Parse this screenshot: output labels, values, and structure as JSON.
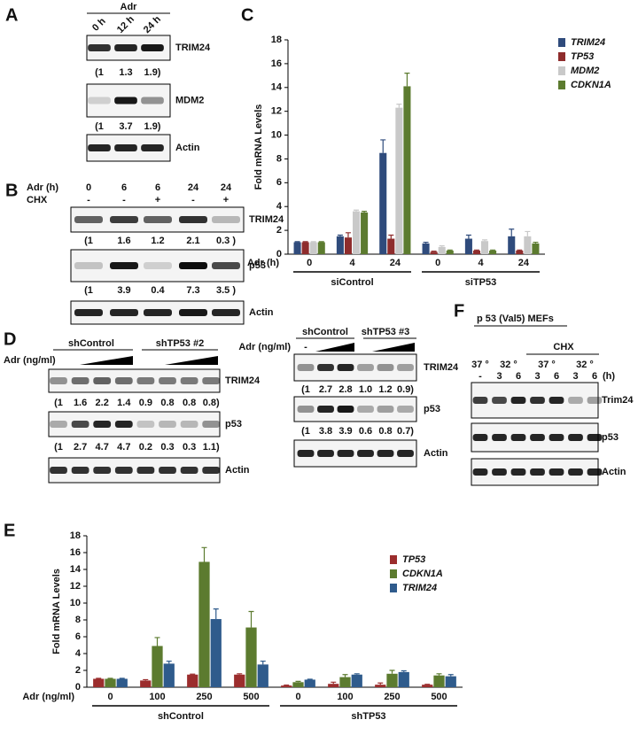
{
  "panels": {
    "A": {
      "letter": "A",
      "treatment": "Adr",
      "lanes": [
        "0 h",
        "12 h",
        "24 h"
      ],
      "blots": [
        {
          "label": "TRIM24",
          "quant": [
            "(1",
            "1.3",
            "1.9)"
          ]
        },
        {
          "label": "MDM2",
          "quant": [
            "(1",
            "3.7",
            "1.9)"
          ]
        },
        {
          "label": "Actin"
        }
      ]
    },
    "B": {
      "letter": "B",
      "row_labels": [
        "Adr (h)",
        "CHX"
      ],
      "lanes": [
        [
          "0",
          "6",
          "6",
          "24",
          "24"
        ],
        [
          "-",
          "-",
          "+",
          "-",
          "+"
        ]
      ],
      "blots": [
        {
          "label": "TRIM24",
          "quant": [
            "(1",
            "1.6",
            "1.2",
            "2.1",
            "0.3 )"
          ]
        },
        {
          "label": "p53",
          "quant": [
            "(1",
            "3.9",
            "0.4",
            "7.3",
            "3.5 )"
          ]
        },
        {
          "label": "Actin"
        }
      ]
    },
    "D": {
      "letter": "D",
      "left": {
        "groups": [
          "shControl",
          "shTP53 #2"
        ],
        "row_label": "Adr (ng/ml)",
        "blots": [
          {
            "label": "TRIM24",
            "quant": [
              "(1",
              "1.6",
              "2.2",
              "1.4",
              "0.9",
              "0.8",
              "0.8",
              "0.8)"
            ]
          },
          {
            "label": "p53",
            "quant": [
              "(1",
              "2.7",
              "4.7",
              "4.7",
              "0.2",
              "0.3",
              "0.3",
              "1.1)"
            ]
          },
          {
            "label": "Actin"
          }
        ]
      },
      "right": {
        "groups": [
          "shControl",
          "shTP53 #3"
        ],
        "row_label": "Adr (ng/ml)",
        "untreated": "-",
        "blots": [
          {
            "label": "TRIM24",
            "quant": [
              "(1",
              "2.7",
              "2.8",
              "1.0",
              "1.2",
              "0.9)"
            ]
          },
          {
            "label": "p53",
            "quant": [
              "(1",
              "3.8",
              "3.9",
              "0.6",
              "0.8",
              "0.7)"
            ]
          },
          {
            "label": "Actin"
          }
        ]
      }
    },
    "F": {
      "letter": "F",
      "title": "p 53 (Val5) MEFs",
      "treatment": "CHX",
      "temps": [
        "37 °",
        "32 °",
        "37 °",
        "32 °"
      ],
      "lanes": [
        "-",
        "3",
        "6",
        "3",
        "6",
        "3",
        "6"
      ],
      "unit": "(h)",
      "blots": [
        {
          "label": "Trim24"
        },
        {
          "label": "p53"
        },
        {
          "label": "Actin"
        }
      ]
    }
  },
  "chart_data": [
    {
      "type": "bar",
      "panel": "C",
      "y_label": "Fold mRNA Levels",
      "x_label": "Adr (h)",
      "categories": [
        "0",
        "4",
        "24",
        "0",
        "4",
        "24"
      ],
      "groups": [
        "siControl",
        "siTP53"
      ],
      "ylim": [
        0,
        18
      ],
      "yticks": [
        0,
        2,
        4,
        6,
        8,
        10,
        12,
        14,
        16,
        18
      ],
      "series": [
        {
          "name": "TRIM24",
          "color": "#2f4b7c",
          "values": [
            1.0,
            1.5,
            8.5,
            0.9,
            1.3,
            1.5
          ],
          "errors": [
            0.05,
            0.1,
            1.1,
            0.1,
            0.3,
            0.6
          ]
        },
        {
          "name": "TP53",
          "color": "#8e2c2c",
          "values": [
            1.0,
            1.4,
            1.3,
            0.2,
            0.3,
            0.3
          ],
          "errors": [
            0.05,
            0.4,
            0.3,
            0.05,
            0.05,
            0.05
          ]
        },
        {
          "name": "MDM2",
          "color": "#c9c9c9",
          "values": [
            1.0,
            3.6,
            12.3,
            0.6,
            1.1,
            1.5
          ],
          "errors": [
            0.05,
            0.1,
            0.3,
            0.1,
            0.1,
            0.4
          ]
        },
        {
          "name": "CDKN1A",
          "color": "#5c7b2f",
          "values": [
            1.0,
            3.5,
            14.1,
            0.3,
            0.3,
            0.9
          ],
          "errors": [
            0.05,
            0.1,
            1.1,
            0.05,
            0.05,
            0.1
          ]
        }
      ]
    },
    {
      "type": "bar",
      "panel": "E",
      "y_label": "Fold mRNA Levels",
      "x_label": "Adr (ng/ml)",
      "categories": [
        "0",
        "100",
        "250",
        "500",
        "0",
        "100",
        "250",
        "500"
      ],
      "groups": [
        "shControl",
        "shTP53"
      ],
      "ylim": [
        0,
        18
      ],
      "yticks": [
        0,
        2,
        4,
        6,
        8,
        10,
        12,
        14,
        16,
        18
      ],
      "series": [
        {
          "name": "TP53",
          "color": "#9b2d2d",
          "values": [
            1.0,
            0.8,
            1.5,
            1.5,
            0.2,
            0.4,
            0.3,
            0.3
          ],
          "errors": [
            0.05,
            0.1,
            0.05,
            0.1,
            0.05,
            0.2,
            0.2,
            0.05
          ]
        },
        {
          "name": "CDKN1A",
          "color": "#5c7b2f",
          "values": [
            1.0,
            4.9,
            14.9,
            7.1,
            0.6,
            1.2,
            1.6,
            1.4
          ],
          "errors": [
            0.05,
            1.0,
            1.7,
            1.9,
            0.1,
            0.3,
            0.4,
            0.2
          ]
        },
        {
          "name": "TRIM24",
          "color": "#2f5b8c",
          "values": [
            1.0,
            2.8,
            8.1,
            2.7,
            0.9,
            1.5,
            1.8,
            1.3
          ],
          "errors": [
            0.05,
            0.3,
            1.2,
            0.4,
            0.05,
            0.1,
            0.15,
            0.2
          ]
        }
      ]
    }
  ]
}
